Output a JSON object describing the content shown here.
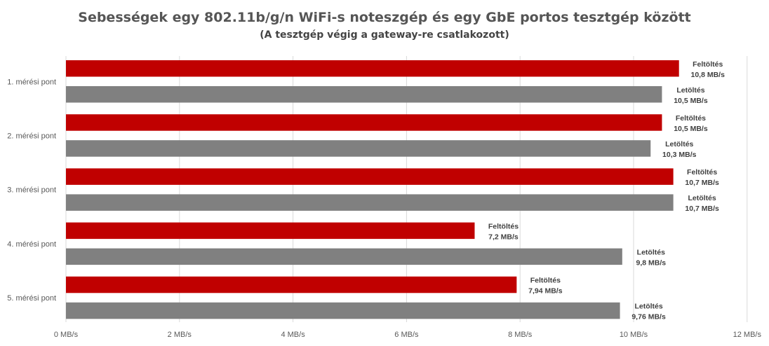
{
  "chart_data": {
    "type": "bar",
    "orientation": "horizontal",
    "title": "Sebességek egy 802.11b/g/n  WiFi-s noteszgép és egy GbE portos tesztgép között",
    "subtitle": "(A tesztgép végig a gateway-re csatlakozott)",
    "categories": [
      "1. mérési pont",
      "2. mérési pont",
      "3. mérési pont",
      "4. mérési pont",
      "5. mérési pont"
    ],
    "series": [
      {
        "name": "Feltöltés",
        "color": "#c00000",
        "values": [
          10.8,
          10.5,
          10.7,
          7.2,
          7.94
        ],
        "labels": [
          "10,8 MB/s",
          "10,5 MB/s",
          "10,7 MB/s",
          "7,2 MB/s",
          "7,94 MB/s"
        ]
      },
      {
        "name": "Letöltés",
        "color": "#808080",
        "values": [
          10.5,
          10.3,
          10.7,
          9.8,
          9.76
        ],
        "labels": [
          "10,5 MB/s",
          "10,3 MB/s",
          "10,7 MB/s",
          "9,8 MB/s",
          "9,76 MB/s"
        ]
      }
    ],
    "xlim": [
      0,
      12
    ],
    "xticks": [
      0,
      2,
      4,
      6,
      8,
      10,
      12
    ],
    "xtick_labels": [
      "0 MB/s",
      "2 MB/s",
      "4 MB/s",
      "6 MB/s",
      "8 MB/s",
      "10 MB/s",
      "12 MB/s"
    ],
    "grid": "vertical",
    "legend": "none"
  }
}
